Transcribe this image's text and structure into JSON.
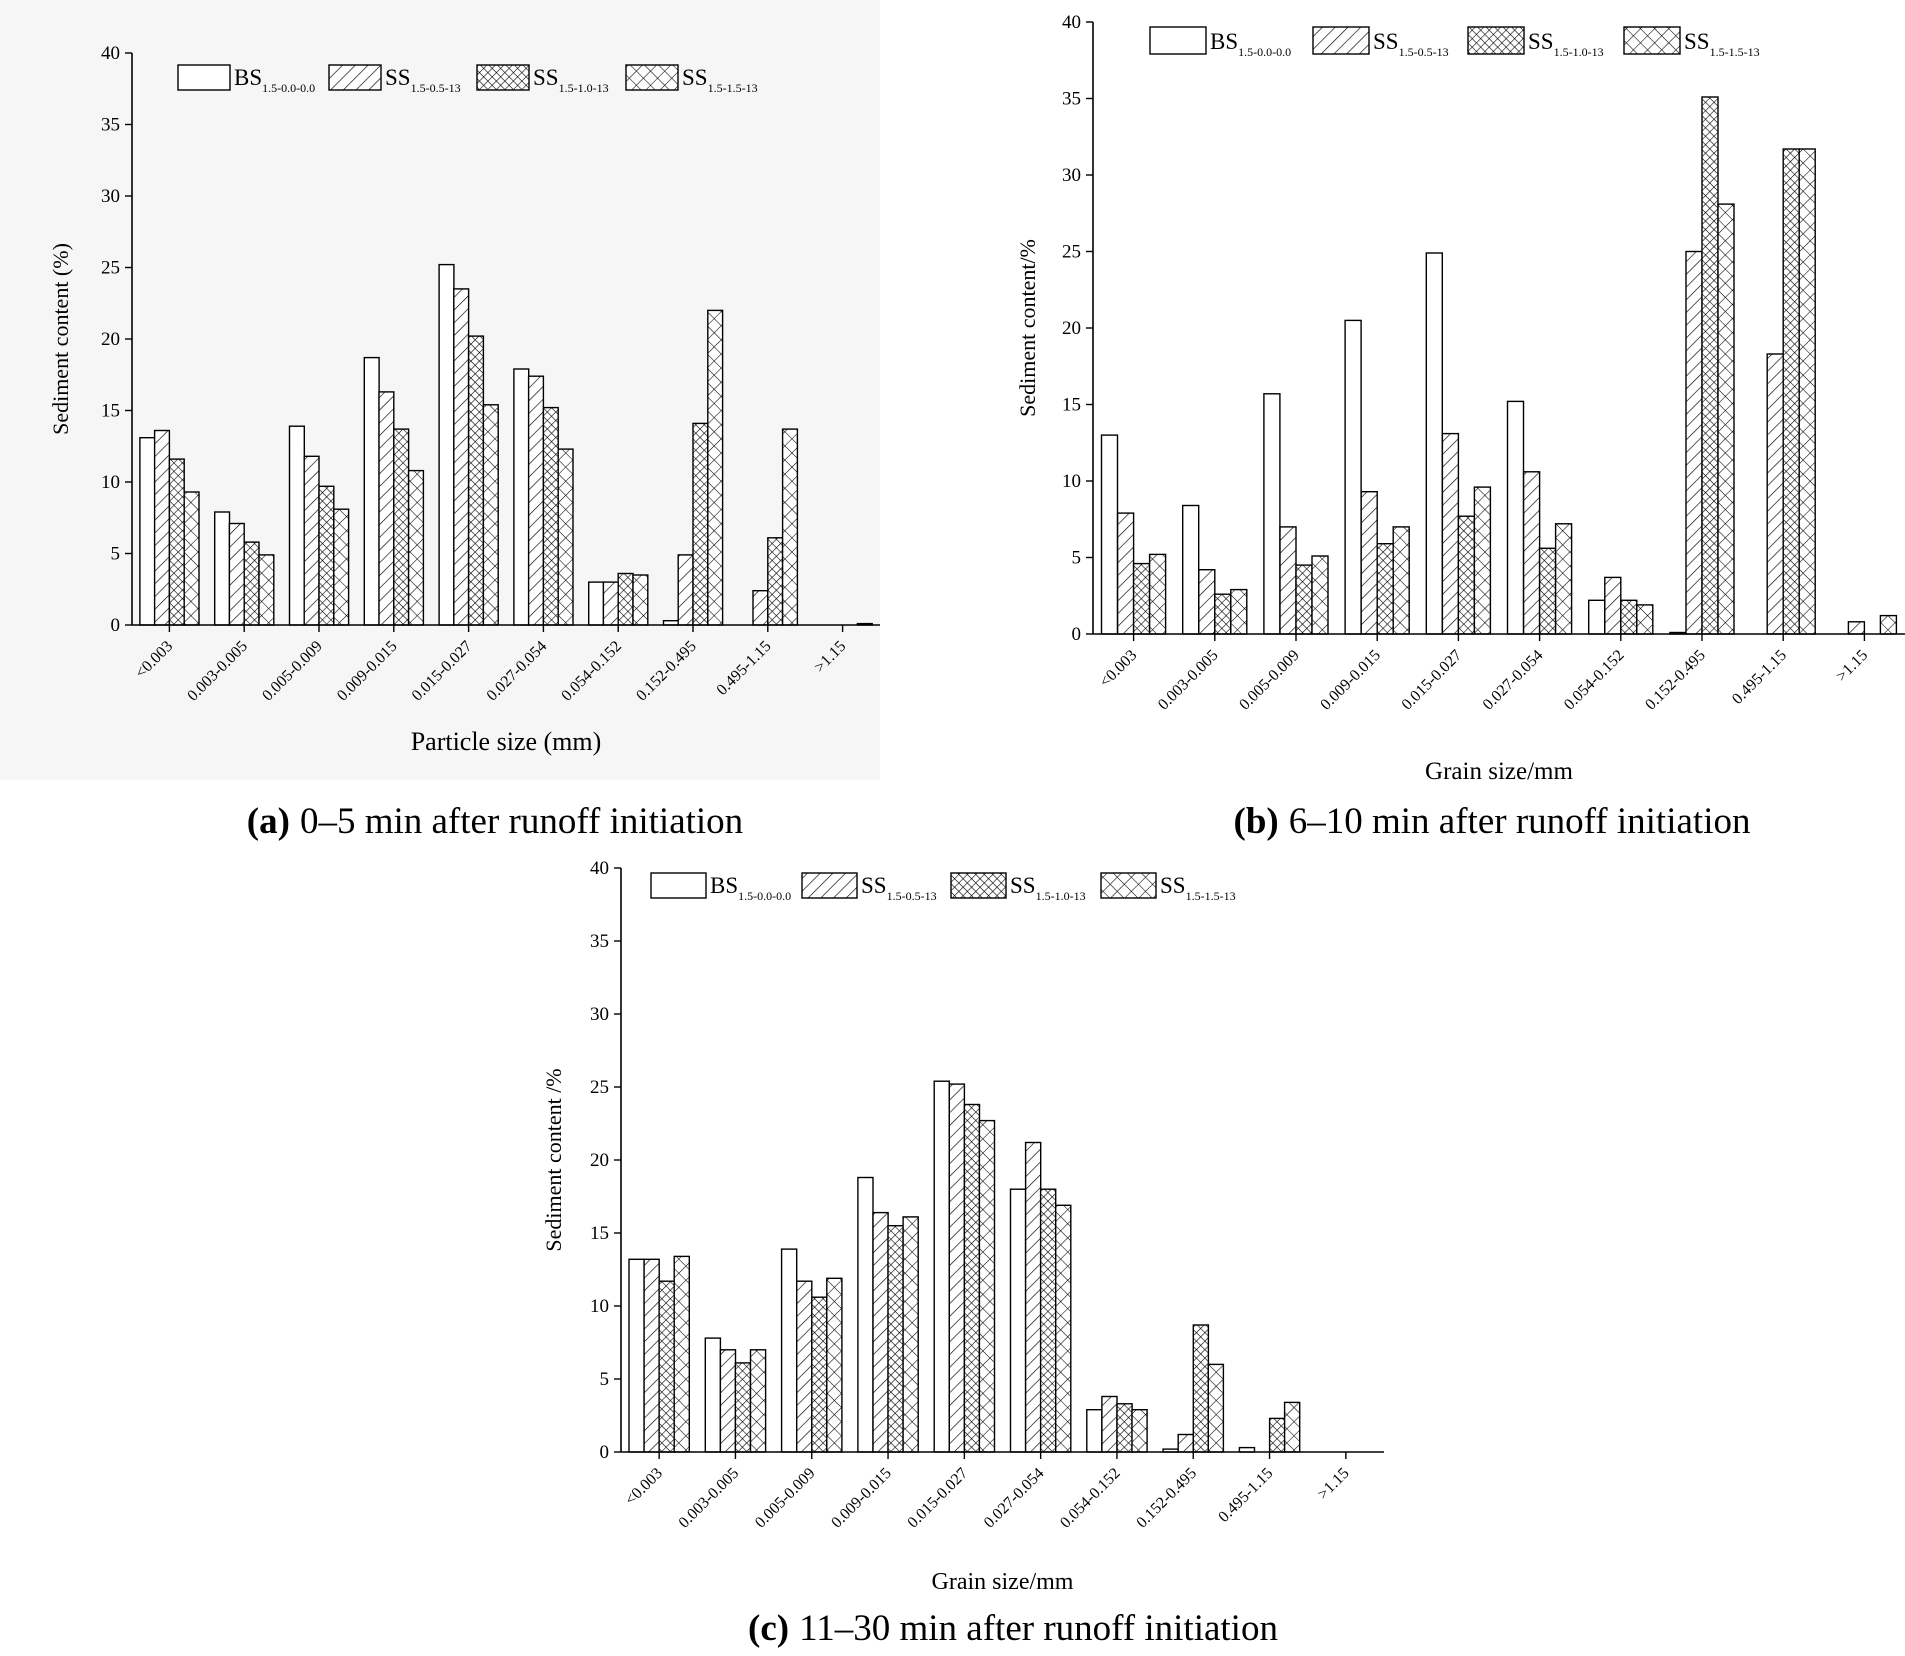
{
  "chart_data": [
    {
      "type": "bar",
      "panel": "a",
      "caption": {
        "letter": "(a)",
        "text": "0–5 min after runoff initiation"
      },
      "title": "",
      "xlabel": "Particle size (mm)",
      "ylabel": "Sediment content (%)",
      "ylim": [
        0,
        40
      ],
      "yticks": [
        0,
        5,
        10,
        15,
        20,
        25,
        30,
        35,
        40
      ],
      "categories": [
        "<0.003",
        "0.003-0.005",
        "0.005-0.009",
        "0.009-0.015",
        "0.015-0.027",
        "0.027-0.054",
        "0.054-0.152",
        "0.152-0.495",
        "0.495-1.15",
        ">1.15"
      ],
      "legend_position": "top",
      "series": [
        {
          "name": "BS",
          "sub": "1.5-0.0-0.0",
          "pattern": "none",
          "values": [
            13.1,
            7.9,
            13.9,
            18.7,
            25.2,
            17.9,
            3.0,
            0.3,
            0.0,
            0.0
          ]
        },
        {
          "name": "SS",
          "sub": "1.5-0.5-13",
          "pattern": "diagonal",
          "values": [
            13.6,
            7.1,
            11.8,
            16.3,
            23.5,
            17.4,
            3.0,
            4.9,
            2.4,
            0.0
          ]
        },
        {
          "name": "SS",
          "sub": "1.5-1.0-13",
          "pattern": "dense-cross",
          "values": [
            11.6,
            5.8,
            9.7,
            13.7,
            20.2,
            15.2,
            3.6,
            14.1,
            6.1,
            0.0
          ]
        },
        {
          "name": "SS",
          "sub": "1.5-1.5-13",
          "pattern": "cross",
          "values": [
            9.3,
            4.9,
            8.1,
            10.8,
            15.4,
            12.3,
            3.5,
            22.0,
            13.7,
            0.1
          ]
        }
      ]
    },
    {
      "type": "bar",
      "panel": "b",
      "caption": {
        "letter": "(b)",
        "text": "6–10 min after runoff initiation"
      },
      "title": "",
      "xlabel": "Grain size/mm",
      "ylabel": "Sediment content/%",
      "ylim": [
        0,
        40
      ],
      "yticks": [
        0,
        5,
        10,
        15,
        20,
        25,
        30,
        35,
        40
      ],
      "categories": [
        "<0.003",
        "0.003-0.005",
        "0.005-0.009",
        "0.009-0.015",
        "0.015-0.027",
        "0.027-0.054",
        "0.054-0.152",
        "0.152-0.495",
        "0.495-1.15",
        ">1.15"
      ],
      "legend_position": "top",
      "series": [
        {
          "name": "BS",
          "sub": "1.5-0.0-0.0",
          "pattern": "none",
          "values": [
            13.0,
            8.4,
            15.7,
            20.5,
            24.9,
            15.2,
            2.2,
            0.1,
            0.0,
            0.0
          ]
        },
        {
          "name": "SS",
          "sub": "1.5-0.5-13",
          "pattern": "diagonal",
          "values": [
            7.9,
            4.2,
            7.0,
            9.3,
            13.1,
            10.6,
            3.7,
            25.0,
            18.3,
            0.8
          ]
        },
        {
          "name": "SS",
          "sub": "1.5-1.0-13",
          "pattern": "dense-cross",
          "values": [
            4.6,
            2.6,
            4.5,
            5.9,
            7.7,
            5.6,
            2.2,
            35.1,
            31.7,
            0.0
          ]
        },
        {
          "name": "SS",
          "sub": "1.5-1.5-13",
          "pattern": "cross",
          "values": [
            5.2,
            2.9,
            5.1,
            7.0,
            9.6,
            7.2,
            1.9,
            28.1,
            31.7,
            1.2
          ]
        }
      ]
    },
    {
      "type": "bar",
      "panel": "c",
      "caption": {
        "letter": "(c)",
        "text": "11–30 min after runoff initiation"
      },
      "title": "",
      "xlabel": "Grain size/mm",
      "ylabel": "Sediment content /%",
      "ylim": [
        0,
        40
      ],
      "yticks": [
        0,
        5,
        10,
        15,
        20,
        25,
        30,
        35,
        40
      ],
      "categories": [
        "<0.003",
        "0.003-0.005",
        "0.005-0.009",
        "0.009-0.015",
        "0.015-0.027",
        "0.027-0.054",
        "0.054-0.152",
        "0.152-0.495",
        "0.495-1.15",
        ">1.15"
      ],
      "legend_position": "top",
      "series": [
        {
          "name": "BS",
          "sub": "1.5-0.0-0.0",
          "pattern": "none",
          "values": [
            13.2,
            7.8,
            13.9,
            18.8,
            25.4,
            18.0,
            2.9,
            0.2,
            0.3,
            0.0
          ]
        },
        {
          "name": "SS",
          "sub": "1.5-0.5-13",
          "pattern": "diagonal",
          "values": [
            13.2,
            7.0,
            11.7,
            16.4,
            25.2,
            21.2,
            3.8,
            1.2,
            0.0,
            0.0
          ]
        },
        {
          "name": "SS",
          "sub": "1.5-1.0-13",
          "pattern": "dense-cross",
          "values": [
            11.7,
            6.1,
            10.6,
            15.5,
            23.8,
            18.0,
            3.3,
            8.7,
            2.3,
            0.0
          ]
        },
        {
          "name": "SS",
          "sub": "1.5-1.5-13",
          "pattern": "cross",
          "values": [
            13.4,
            7.0,
            11.9,
            16.1,
            22.7,
            16.9,
            2.9,
            6.0,
            3.4,
            0.0
          ]
        }
      ]
    }
  ]
}
